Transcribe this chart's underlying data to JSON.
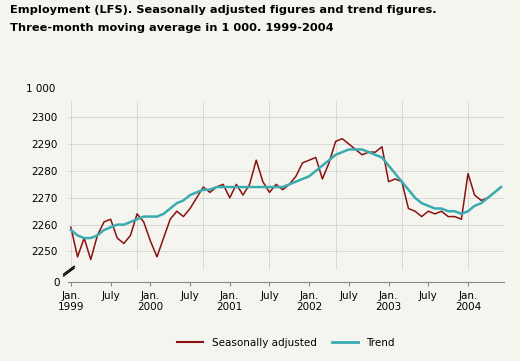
{
  "title_line1": "Employment (LFS). Seasonally adjusted figures and trend figures.",
  "title_line2": "Three-month moving average in 1 000. 1999-2004",
  "ylabel_top": "1 000",
  "ylim_main": [
    2243,
    2306
  ],
  "ylim_zero": [
    0,
    10
  ],
  "yticks_main": [
    2250,
    2260,
    2270,
    2280,
    2290,
    2300
  ],
  "seasonally_adjusted_color": "#8B1010",
  "trend_color": "#3AABB0",
  "background_color": "#f5f5f0",
  "grid_color": "#cccccc",
  "seasonally_adjusted": [
    2259,
    2248,
    2255,
    2247,
    2256,
    2261,
    2262,
    2255,
    2253,
    2256,
    2264,
    2261,
    2254,
    2248,
    2255,
    2262,
    2265,
    2263,
    2266,
    2270,
    2274,
    2272,
    2274,
    2275,
    2270,
    2275,
    2271,
    2275,
    2284,
    2276,
    2272,
    2275,
    2273,
    2275,
    2278,
    2283,
    2284,
    2285,
    2277,
    2283,
    2291,
    2292,
    2290,
    2288,
    2286,
    2287,
    2287,
    2289,
    2276,
    2277,
    2276,
    2266,
    2265,
    2263,
    2265,
    2264,
    2265,
    2263,
    2263,
    2262,
    2279,
    2271,
    2269,
    2270,
    2272,
    2274
  ],
  "trend": [
    2258,
    2256,
    2255,
    2255,
    2256,
    2258,
    2259,
    2260,
    2260,
    2261,
    2262,
    2263,
    2263,
    2263,
    2264,
    2266,
    2268,
    2269,
    2271,
    2272,
    2273,
    2273,
    2274,
    2274,
    2274,
    2274,
    2274,
    2274,
    2274,
    2274,
    2274,
    2274,
    2274,
    2275,
    2276,
    2277,
    2278,
    2280,
    2282,
    2284,
    2286,
    2287,
    2288,
    2288,
    2288,
    2287,
    2286,
    2285,
    2282,
    2279,
    2276,
    2273,
    2270,
    2268,
    2267,
    2266,
    2266,
    2265,
    2265,
    2264,
    2265,
    2267,
    2268,
    2270,
    2272,
    2274
  ],
  "n_points": 66,
  "legend_entries": [
    "Seasonally adjusted",
    "Trend"
  ]
}
